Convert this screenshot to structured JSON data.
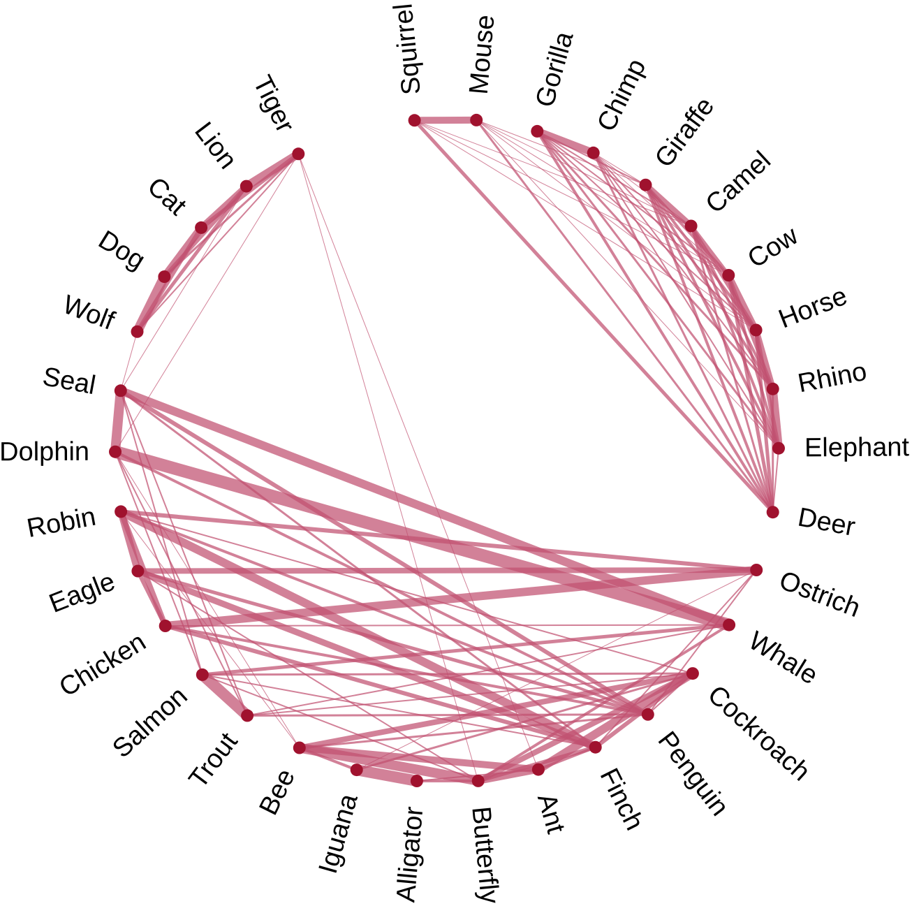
{
  "colors": {
    "edge": "#c05070",
    "node": "#a0122e",
    "background": "#ffffff"
  },
  "nodes": [
    {
      "id": "Squirrel"
    },
    {
      "id": "Mouse"
    },
    {
      "id": "Gorilla"
    },
    {
      "id": "Chimp"
    },
    {
      "id": "Giraffe"
    },
    {
      "id": "Camel"
    },
    {
      "id": "Cow"
    },
    {
      "id": "Horse"
    },
    {
      "id": "Rhino"
    },
    {
      "id": "Elephant"
    },
    {
      "id": "Deer"
    },
    {
      "id": "Ostrich"
    },
    {
      "id": "Whale"
    },
    {
      "id": "Cockroach"
    },
    {
      "id": "Penguin"
    },
    {
      "id": "Finch"
    },
    {
      "id": "Ant"
    },
    {
      "id": "Butterfly"
    },
    {
      "id": "Alligator"
    },
    {
      "id": "Iguana"
    },
    {
      "id": "Bee"
    },
    {
      "id": "Trout"
    },
    {
      "id": "Salmon"
    },
    {
      "id": "Chicken"
    },
    {
      "id": "Eagle"
    },
    {
      "id": "Robin"
    },
    {
      "id": "Dolphin"
    },
    {
      "id": "Seal"
    },
    {
      "id": "Wolf"
    },
    {
      "id": "Dog"
    },
    {
      "id": "Cat"
    },
    {
      "id": "Lion"
    },
    {
      "id": "Tiger"
    }
  ],
  "edges": [
    {
      "source": "Squirrel",
      "target": "Mouse",
      "weight": 10
    },
    {
      "source": "Squirrel",
      "target": "Deer",
      "weight": 5
    },
    {
      "source": "Squirrel",
      "target": "Camel",
      "weight": 1
    },
    {
      "source": "Squirrel",
      "target": "Cow",
      "weight": 1
    },
    {
      "source": "Squirrel",
      "target": "Horse",
      "weight": 1
    },
    {
      "source": "Mouse",
      "target": "Deer",
      "weight": 3
    },
    {
      "source": "Mouse",
      "target": "Giraffe",
      "weight": 1
    },
    {
      "source": "Mouse",
      "target": "Camel",
      "weight": 1
    },
    {
      "source": "Mouse",
      "target": "Cow",
      "weight": 1
    },
    {
      "source": "Mouse",
      "target": "Horse",
      "weight": 1
    },
    {
      "source": "Mouse",
      "target": "Elephant",
      "weight": 1
    },
    {
      "source": "Gorilla",
      "target": "Chimp",
      "weight": 11
    },
    {
      "source": "Gorilla",
      "target": "Deer",
      "weight": 4
    },
    {
      "source": "Gorilla",
      "target": "Elephant",
      "weight": 3
    },
    {
      "source": "Gorilla",
      "target": "Giraffe",
      "weight": 2
    },
    {
      "source": "Gorilla",
      "target": "Camel",
      "weight": 2
    },
    {
      "source": "Gorilla",
      "target": "Cow",
      "weight": 2
    },
    {
      "source": "Gorilla",
      "target": "Horse",
      "weight": 2
    },
    {
      "source": "Gorilla",
      "target": "Rhino",
      "weight": 3
    },
    {
      "source": "Chimp",
      "target": "Deer",
      "weight": 3
    },
    {
      "source": "Chimp",
      "target": "Elephant",
      "weight": 2
    },
    {
      "source": "Chimp",
      "target": "Rhino",
      "weight": 2
    },
    {
      "source": "Chimp",
      "target": "Horse",
      "weight": 2
    },
    {
      "source": "Chimp",
      "target": "Cow",
      "weight": 1
    },
    {
      "source": "Chimp",
      "target": "Camel",
      "weight": 1
    },
    {
      "source": "Chimp",
      "target": "Giraffe",
      "weight": 1
    },
    {
      "source": "Giraffe",
      "target": "Camel",
      "weight": 9
    },
    {
      "source": "Giraffe",
      "target": "Cow",
      "weight": 4
    },
    {
      "source": "Giraffe",
      "target": "Horse",
      "weight": 4
    },
    {
      "source": "Giraffe",
      "target": "Rhino",
      "weight": 4
    },
    {
      "source": "Giraffe",
      "target": "Elephant",
      "weight": 4
    },
    {
      "source": "Giraffe",
      "target": "Deer",
      "weight": 4
    },
    {
      "source": "Camel",
      "target": "Cow",
      "weight": 6
    },
    {
      "source": "Camel",
      "target": "Horse",
      "weight": 5
    },
    {
      "source": "Camel",
      "target": "Rhino",
      "weight": 4
    },
    {
      "source": "Camel",
      "target": "Elephant",
      "weight": 4
    },
    {
      "source": "Camel",
      "target": "Deer",
      "weight": 3
    },
    {
      "source": "Cow",
      "target": "Horse",
      "weight": 9
    },
    {
      "source": "Cow",
      "target": "Rhino",
      "weight": 5
    },
    {
      "source": "Cow",
      "target": "Elephant",
      "weight": 4
    },
    {
      "source": "Cow",
      "target": "Deer",
      "weight": 5
    },
    {
      "source": "Horse",
      "target": "Rhino",
      "weight": 9
    },
    {
      "source": "Horse",
      "target": "Elephant",
      "weight": 6
    },
    {
      "source": "Horse",
      "target": "Deer",
      "weight": 5
    },
    {
      "source": "Rhino",
      "target": "Elephant",
      "weight": 12
    },
    {
      "source": "Rhino",
      "target": "Deer",
      "weight": 3
    },
    {
      "source": "Elephant",
      "target": "Deer",
      "weight": 2
    },
    {
      "source": "Tiger",
      "target": "Lion",
      "weight": 12
    },
    {
      "source": "Tiger",
      "target": "Cat",
      "weight": 6
    },
    {
      "source": "Tiger",
      "target": "Dog",
      "weight": 3
    },
    {
      "source": "Tiger",
      "target": "Wolf",
      "weight": 2
    },
    {
      "source": "Tiger",
      "target": "Butterfly",
      "weight": 1
    },
    {
      "source": "Tiger",
      "target": "Ant",
      "weight": 1
    },
    {
      "source": "Tiger",
      "target": "Dolphin",
      "weight": 1
    },
    {
      "source": "Lion",
      "target": "Cat",
      "weight": 9
    },
    {
      "source": "Lion",
      "target": "Dog",
      "weight": 6
    },
    {
      "source": "Lion",
      "target": "Wolf",
      "weight": 5
    },
    {
      "source": "Lion",
      "target": "Seal",
      "weight": 1
    },
    {
      "source": "Cat",
      "target": "Dog",
      "weight": 11
    },
    {
      "source": "Cat",
      "target": "Wolf",
      "weight": 6
    },
    {
      "source": "Dog",
      "target": "Wolf",
      "weight": 14
    },
    {
      "source": "Wolf",
      "target": "Seal",
      "weight": 1
    },
    {
      "source": "Seal",
      "target": "Dolphin",
      "weight": 14
    },
    {
      "source": "Seal",
      "target": "Whale",
      "weight": 12
    },
    {
      "source": "Seal",
      "target": "Penguin",
      "weight": 6
    },
    {
      "source": "Seal",
      "target": "Finch",
      "weight": 3
    },
    {
      "source": "Seal",
      "target": "Trout",
      "weight": 2
    },
    {
      "source": "Seal",
      "target": "Salmon",
      "weight": 2
    },
    {
      "source": "Dolphin",
      "target": "Whale",
      "weight": 18
    },
    {
      "source": "Dolphin",
      "target": "Penguin",
      "weight": 4
    },
    {
      "source": "Dolphin",
      "target": "Trout",
      "weight": 2
    },
    {
      "source": "Dolphin",
      "target": "Salmon",
      "weight": 2
    },
    {
      "source": "Dolphin",
      "target": "Bee",
      "weight": 1
    },
    {
      "source": "Robin",
      "target": "Eagle",
      "weight": 10
    },
    {
      "source": "Robin",
      "target": "Chicken",
      "weight": 8
    },
    {
      "source": "Robin",
      "target": "Finch",
      "weight": 12
    },
    {
      "source": "Robin",
      "target": "Ostrich",
      "weight": 6
    },
    {
      "source": "Robin",
      "target": "Penguin",
      "weight": 4
    },
    {
      "source": "Robin",
      "target": "Cockroach",
      "weight": 2
    },
    {
      "source": "Robin",
      "target": "Bee",
      "weight": 1
    },
    {
      "source": "Eagle",
      "target": "Chicken",
      "weight": 6
    },
    {
      "source": "Eagle",
      "target": "Ostrich",
      "weight": 8
    },
    {
      "source": "Eagle",
      "target": "Finch",
      "weight": 9
    },
    {
      "source": "Eagle",
      "target": "Penguin",
      "weight": 5
    },
    {
      "source": "Eagle",
      "target": "Butterfly",
      "weight": 2
    },
    {
      "source": "Chicken",
      "target": "Ostrich",
      "weight": 12
    },
    {
      "source": "Chicken",
      "target": "Finch",
      "weight": 6
    },
    {
      "source": "Chicken",
      "target": "Penguin",
      "weight": 4
    },
    {
      "source": "Chicken",
      "target": "Whale",
      "weight": 2
    },
    {
      "source": "Salmon",
      "target": "Trout",
      "weight": 16
    },
    {
      "source": "Salmon",
      "target": "Whale",
      "weight": 5
    },
    {
      "source": "Salmon",
      "target": "Cockroach",
      "weight": 3
    },
    {
      "source": "Salmon",
      "target": "Finch",
      "weight": 2
    },
    {
      "source": "Salmon",
      "target": "Butterfly",
      "weight": 2
    },
    {
      "source": "Trout",
      "target": "Penguin",
      "weight": 3
    },
    {
      "source": "Trout",
      "target": "Whale",
      "weight": 2
    },
    {
      "source": "Trout",
      "target": "Cockroach",
      "weight": 2
    },
    {
      "source": "Bee",
      "target": "Butterfly",
      "weight": 14
    },
    {
      "source": "Bee",
      "target": "Cockroach",
      "weight": 8
    },
    {
      "source": "Bee",
      "target": "Ant",
      "weight": 10
    },
    {
      "source": "Bee",
      "target": "Iguana",
      "weight": 4
    },
    {
      "source": "Bee",
      "target": "Penguin",
      "weight": 3
    },
    {
      "source": "Iguana",
      "target": "Alligator",
      "weight": 16
    },
    {
      "source": "Iguana",
      "target": "Cockroach",
      "weight": 3
    },
    {
      "source": "Iguana",
      "target": "Ostrich",
      "weight": 1
    },
    {
      "source": "Alligator",
      "target": "Butterfly",
      "weight": 4
    },
    {
      "source": "Alligator",
      "target": "Ant",
      "weight": 2
    },
    {
      "source": "Butterfly",
      "target": "Ant",
      "weight": 10
    },
    {
      "source": "Butterfly",
      "target": "Cockroach",
      "weight": 8
    },
    {
      "source": "Butterfly",
      "target": "Finch",
      "weight": 6
    },
    {
      "source": "Butterfly",
      "target": "Whale",
      "weight": 4
    },
    {
      "source": "Ant",
      "target": "Cockroach",
      "weight": 12
    },
    {
      "source": "Ant",
      "target": "Finch",
      "weight": 4
    },
    {
      "source": "Finch",
      "target": "Cockroach",
      "weight": 6
    },
    {
      "source": "Finch",
      "target": "Ostrich",
      "weight": 2
    },
    {
      "source": "Penguin",
      "target": "Ostrich",
      "weight": 2
    },
    {
      "source": "Penguin",
      "target": "Cockroach",
      "weight": 2
    }
  ]
}
